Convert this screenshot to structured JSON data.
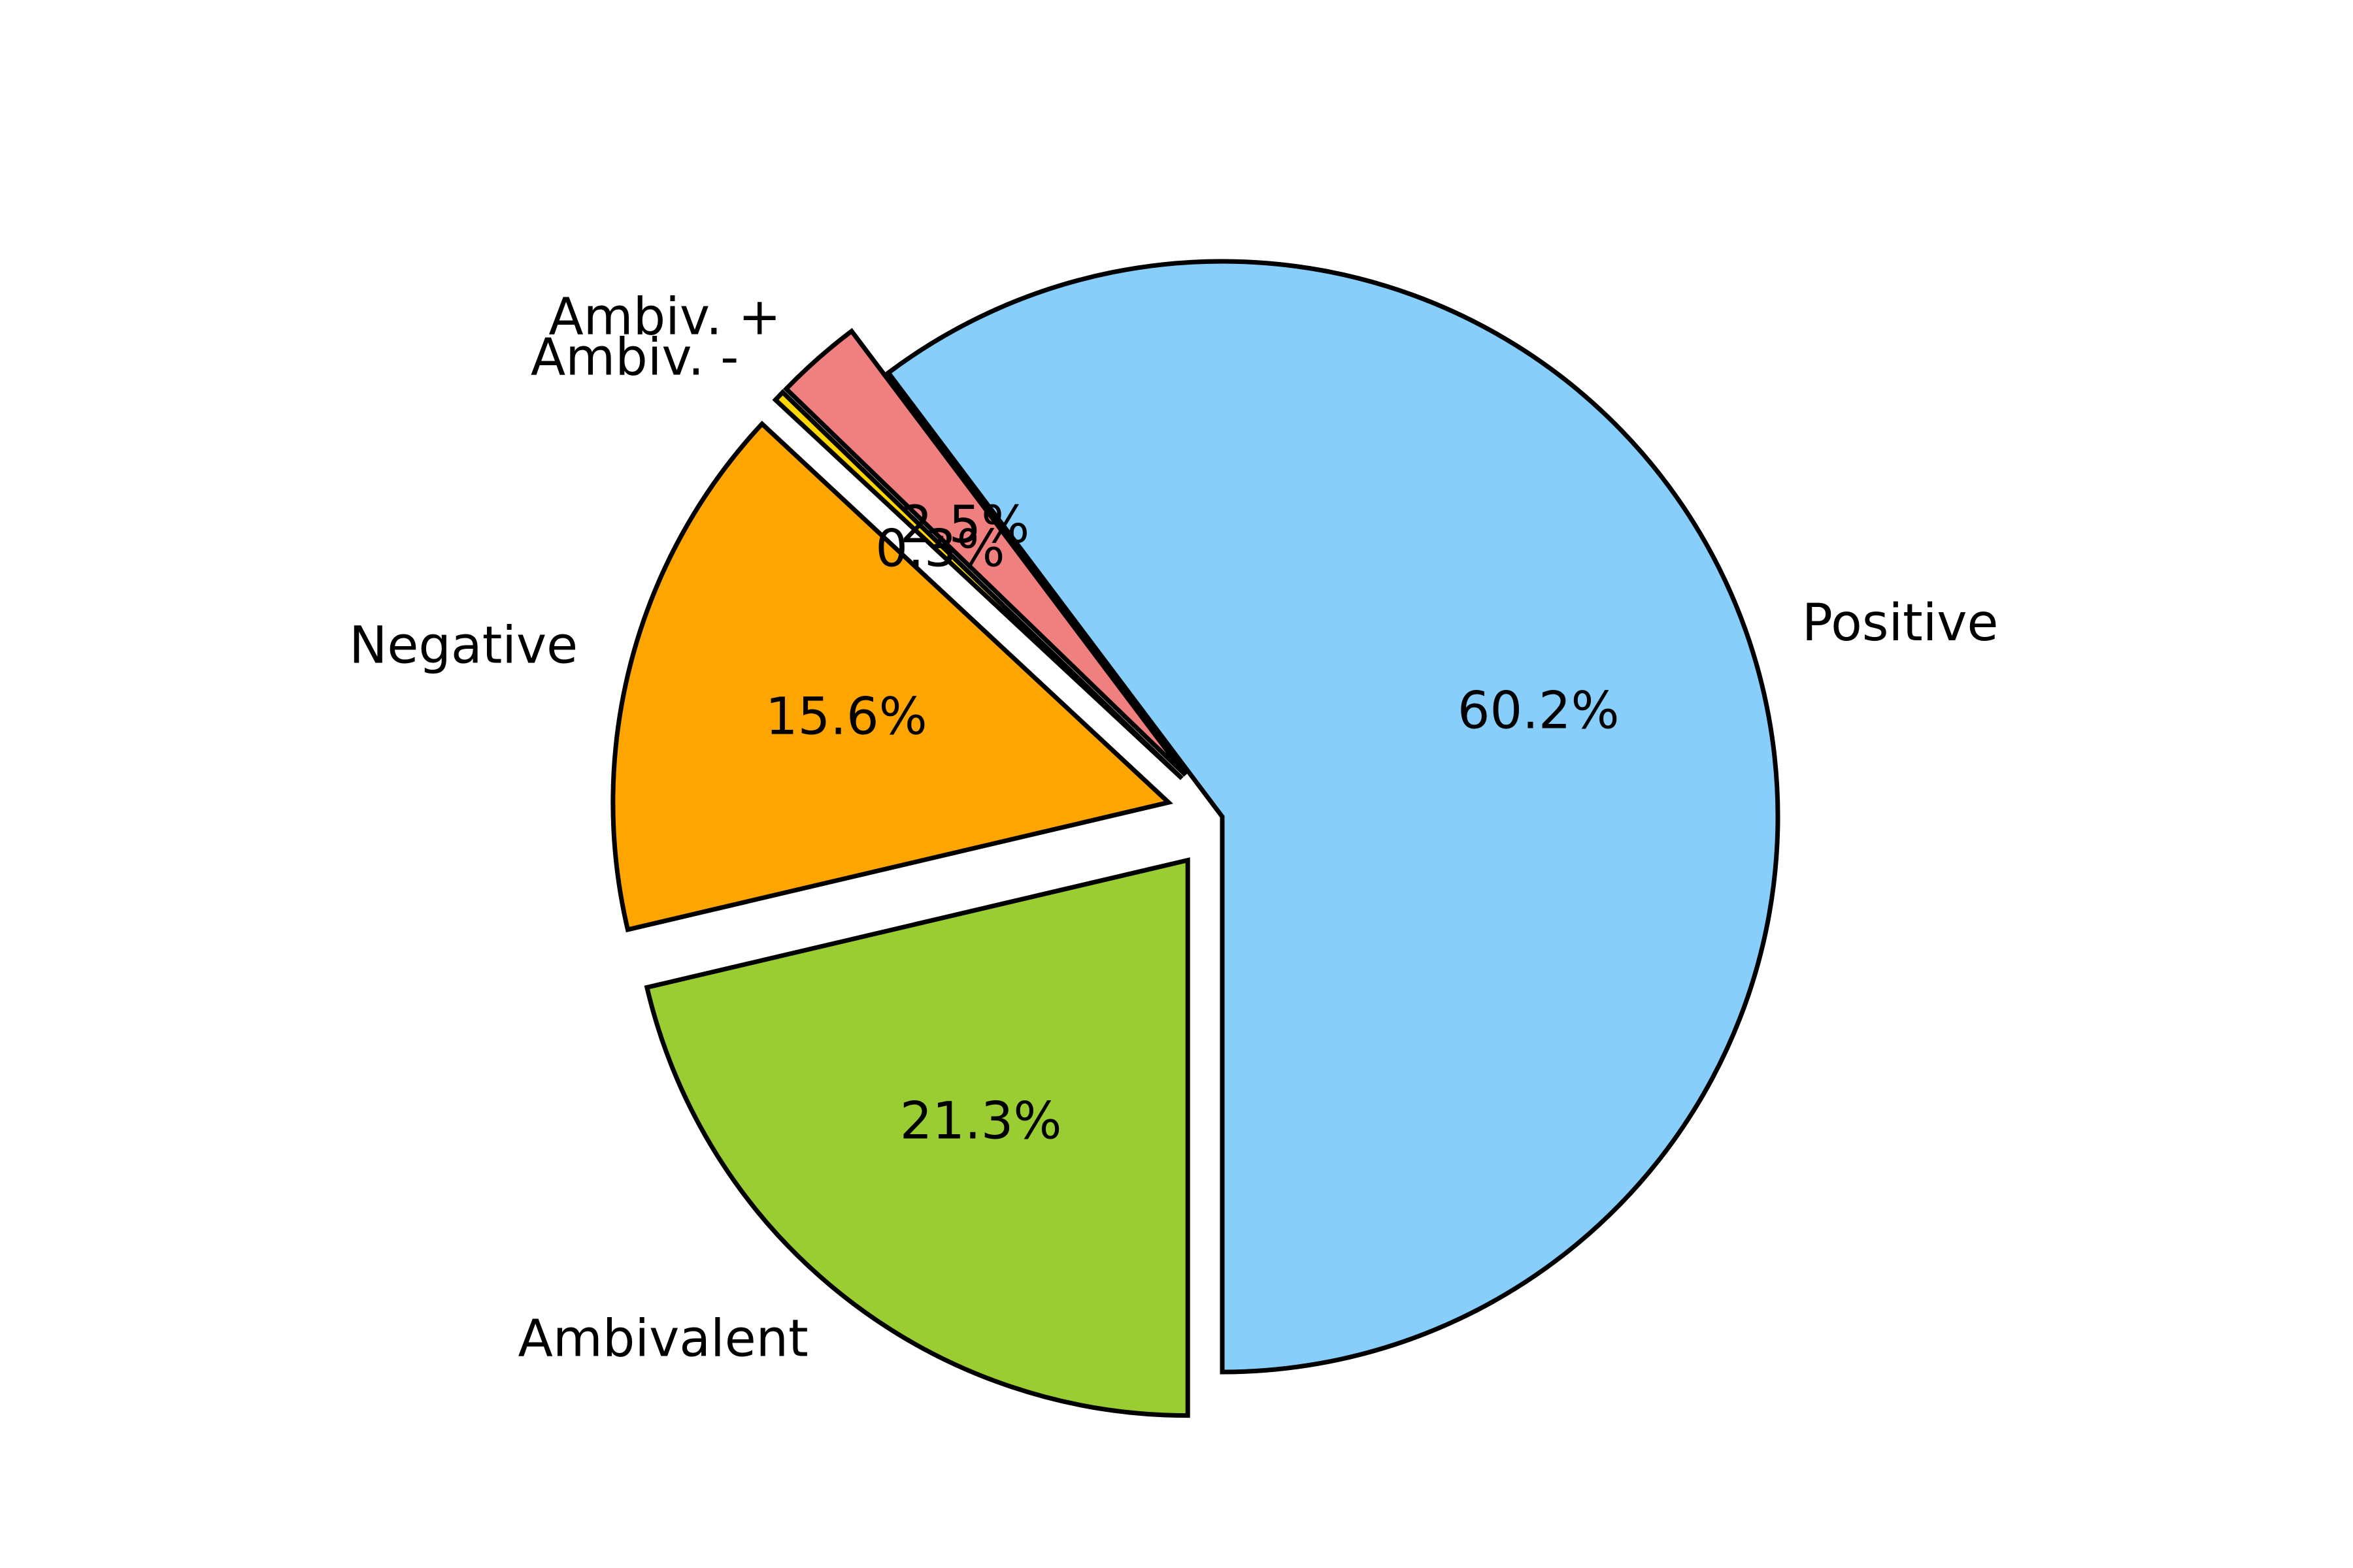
{
  "chart_data": {
    "type": "pie",
    "categories": [
      "Positive",
      "Ambiv. +",
      "Ambiv. -",
      "Negative",
      "Ambivalent"
    ],
    "values": [
      60.2,
      2.5,
      0.3,
      15.6,
      21.3
    ],
    "labels": [
      "Positive",
      "Ambiv. +",
      "Ambiv. -",
      "Negative",
      "Ambivalent"
    ],
    "autopct_labels": [
      "60.2%",
      "2.5%",
      "0.3%",
      "15.6%",
      "21.3%"
    ],
    "colors": [
      "#87CEFA",
      "#F08080",
      "#FFD700",
      "#FFA500",
      "#9ACD32"
    ],
    "explode": [
      0,
      0.1,
      0.1,
      0.1,
      0.1
    ],
    "start_angle_deg": -90,
    "direction": "counterclockwise",
    "edge_color": "#000000",
    "title": "",
    "legend": "none"
  }
}
